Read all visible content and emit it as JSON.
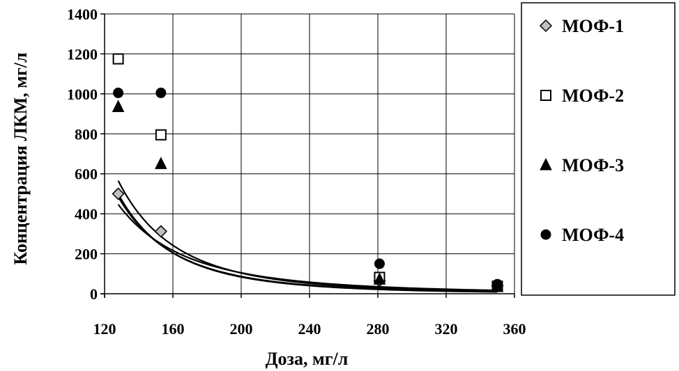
{
  "chart_data": {
    "type": "scatter",
    "title": "",
    "xlabel": "Доза, мг/л",
    "ylabel": "Концентрация ЛКМ, мг/л",
    "xlim": [
      120,
      360
    ],
    "ylim": [
      0,
      1400
    ],
    "xticks": [
      120,
      160,
      200,
      240,
      280,
      320,
      360
    ],
    "yticks": [
      0,
      200,
      400,
      600,
      800,
      1000,
      1200,
      1400
    ],
    "grid": true,
    "legend_position": "right",
    "series": [
      {
        "name": "МОФ-1",
        "marker": "diamond",
        "color": "#c0c0c0",
        "points": [
          [
            128,
            500
          ],
          [
            153,
            312
          ],
          [
            281,
            65
          ],
          [
            350,
            40
          ]
        ],
        "trendline": {
          "a": 3150000000,
          "b": 3.25
        }
      },
      {
        "name": "МОФ-2",
        "marker": "square",
        "color": "#ffffff",
        "points": [
          [
            128,
            1175
          ],
          [
            153,
            795
          ],
          [
            281,
            82
          ],
          [
            350,
            38
          ]
        ],
        "trendline": {
          "a": 57500000000.0,
          "b": 3.8
        }
      },
      {
        "name": "МОФ-3",
        "marker": "triangle",
        "color": "#000000",
        "points": [
          [
            128,
            935
          ],
          [
            153,
            650
          ],
          [
            281,
            72
          ],
          [
            350,
            35
          ]
        ],
        "trendline": {
          "a": 66000000000.0,
          "b": 3.86
        }
      },
      {
        "name": "МОФ-4",
        "marker": "circle",
        "color": "#000000",
        "points": [
          [
            128,
            1005
          ],
          [
            153,
            1005
          ],
          [
            281,
            150
          ],
          [
            350,
            48
          ]
        ],
        "trendline": {
          "a": 134000000000.0,
          "b": 4.0
        }
      }
    ]
  }
}
